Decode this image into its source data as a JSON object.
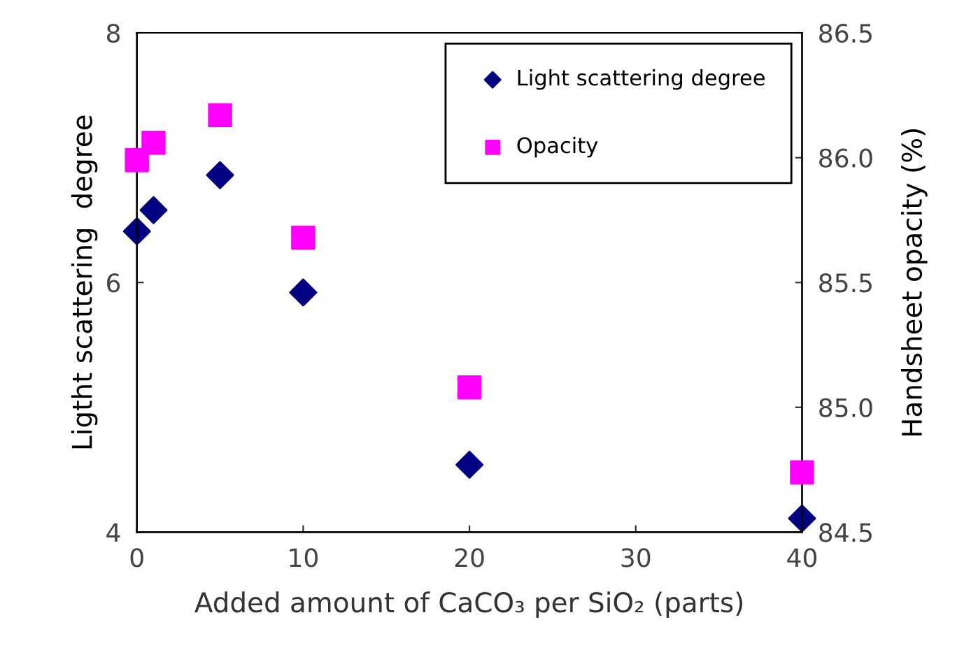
{
  "chart_data": {
    "type": "scatter",
    "xlabel": "Added amount of CaCO₃ per SiO₂ (parts)",
    "ylabel": "Ligtht scattering  degree",
    "y2label": "Handsheet opacity (%)",
    "x": [
      0,
      1,
      5,
      10,
      20,
      40
    ],
    "series": [
      {
        "name": "Light scattering degree",
        "color": "#000080",
        "marker": "diamond",
        "values": [
          6.41,
          6.58,
          6.86,
          5.92,
          4.54,
          4.11
        ]
      },
      {
        "name": "Opacity",
        "color": "#ff00ff",
        "marker": "square",
        "axis": "y2",
        "values": [
          85.99,
          86.06,
          86.17,
          85.68,
          85.08,
          84.74
        ]
      }
    ],
    "xlim": [
      0,
      40
    ],
    "xticks": [
      0,
      10,
      20,
      30,
      40
    ],
    "ylim": [
      4,
      8
    ],
    "yticks": [
      4,
      6,
      8
    ],
    "y2lim": [
      84.5,
      86.5
    ],
    "y2ticks": [
      {
        "value": 84.5,
        "label": "84.5"
      },
      {
        "value": 85.0,
        "label": "85.0"
      },
      {
        "value": 85.5,
        "label": "85.5"
      },
      {
        "value": 86.0,
        "label": "86.0"
      },
      {
        "value": 86.5,
        "label": "86.5"
      }
    ],
    "grid": false,
    "legend": "top right"
  }
}
